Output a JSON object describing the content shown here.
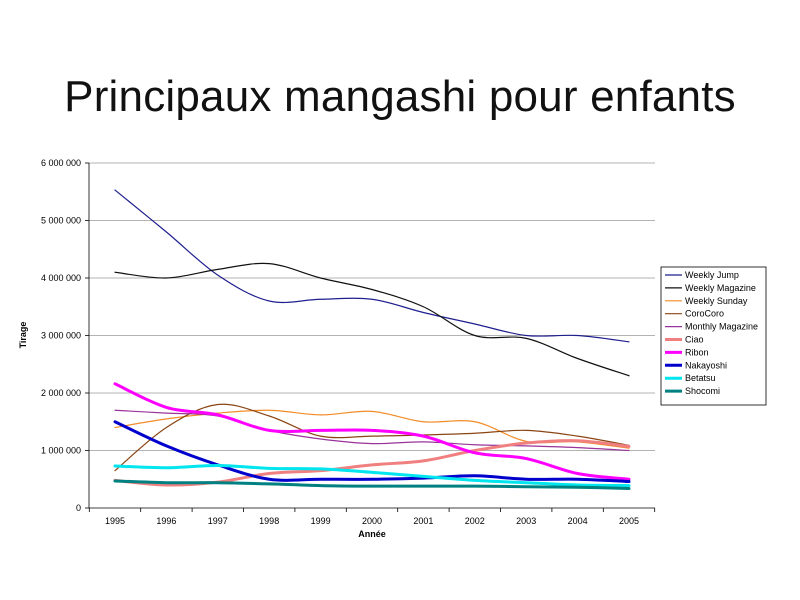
{
  "chart_data": {
    "type": "line",
    "title": "Principaux mangashi pour enfants",
    "xlabel": "Année",
    "ylabel": "Tirage",
    "ylim": [
      0,
      6000000
    ],
    "y_ticks": [
      0,
      1000000,
      2000000,
      3000000,
      4000000,
      5000000,
      6000000
    ],
    "y_tick_labels": [
      "0",
      "1 000 000",
      "2 000 000",
      "3 000 000",
      "4 000 000",
      "5 000 000",
      "6 000 000"
    ],
    "grid": true,
    "legend_position": "right",
    "x": [
      1995,
      1996,
      1997,
      1998,
      1999,
      2000,
      2001,
      2002,
      2003,
      2004,
      2005
    ],
    "series": [
      {
        "name": "Weekly Jump",
        "color": "#1f1f8f",
        "width": 1.2,
        "values": [
          5530000,
          4800000,
          4050000,
          3600000,
          3630000,
          3630000,
          3400000,
          3200000,
          3000000,
          3000000,
          2890000
        ]
      },
      {
        "name": "Weekly Magazine",
        "color": "#111111",
        "width": 1.2,
        "values": [
          4100000,
          4000000,
          4150000,
          4250000,
          4000000,
          3800000,
          3500000,
          3000000,
          2950000,
          2600000,
          2300000
        ]
      },
      {
        "name": "Weekly Sunday",
        "color": "#f28c28",
        "width": 1.2,
        "values": [
          1400000,
          1550000,
          1650000,
          1700000,
          1620000,
          1680000,
          1500000,
          1500000,
          1160000,
          1150000,
          1040000
        ]
      },
      {
        "name": "CoroCoro",
        "color": "#8b4513",
        "width": 1.2,
        "values": [
          650000,
          1400000,
          1800000,
          1600000,
          1250000,
          1250000,
          1270000,
          1300000,
          1350000,
          1250000,
          1090000
        ]
      },
      {
        "name": "Monthly Magazine",
        "color": "#993399",
        "width": 1.2,
        "values": [
          1700000,
          1650000,
          1600000,
          1350000,
          1200000,
          1120000,
          1150000,
          1100000,
          1080000,
          1050000,
          1000000
        ]
      },
      {
        "name": "Ciao",
        "color": "#f08080",
        "width": 3,
        "values": [
          480000,
          400000,
          450000,
          600000,
          650000,
          750000,
          820000,
          1000000,
          1130000,
          1170000,
          1070000
        ]
      },
      {
        "name": "Ribon",
        "color": "#ff00ff",
        "width": 3,
        "values": [
          2160000,
          1750000,
          1620000,
          1350000,
          1350000,
          1350000,
          1250000,
          960000,
          860000,
          600000,
          500000
        ]
      },
      {
        "name": "Nakayoshi",
        "color": "#0000cc",
        "width": 3,
        "values": [
          1500000,
          1080000,
          750000,
          500000,
          500000,
          500000,
          520000,
          560000,
          500000,
          500000,
          460000
        ]
      },
      {
        "name": "Betatsu",
        "color": "#00e5ee",
        "width": 3,
        "values": [
          730000,
          700000,
          740000,
          690000,
          680000,
          620000,
          550000,
          480000,
          440000,
          400000,
          390000
        ]
      },
      {
        "name": "Shocomi",
        "color": "#008080",
        "width": 3,
        "values": [
          470000,
          440000,
          440000,
          420000,
          390000,
          380000,
          380000,
          380000,
          370000,
          360000,
          340000
        ]
      }
    ]
  }
}
